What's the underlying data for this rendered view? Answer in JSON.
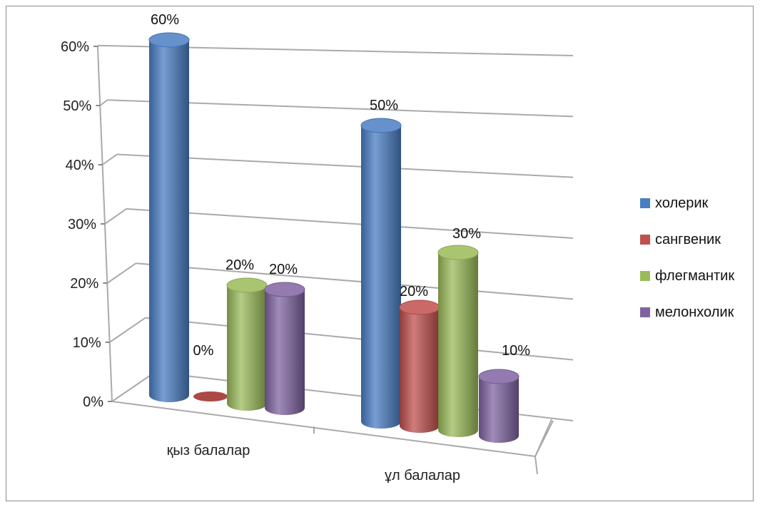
{
  "chart_data": {
    "type": "bar",
    "style": "3d-cylinder",
    "categories": [
      "қыз балалар",
      "ұл балалар"
    ],
    "series": [
      {
        "name": "холерик",
        "values": [
          60,
          50
        ],
        "color": "#4a7ec4"
      },
      {
        "name": "сангвеник",
        "values": [
          0,
          20
        ],
        "color": "#c0504d"
      },
      {
        "name": "флегмантик",
        "values": [
          20,
          30
        ],
        "color": "#9bbb59"
      },
      {
        "name": "мелонхолик",
        "values": [
          20,
          10
        ],
        "color": "#8064a2"
      }
    ],
    "data_labels": [
      [
        "60%",
        "50%"
      ],
      [
        "0%",
        "20%"
      ],
      [
        "20%",
        "30%"
      ],
      [
        "20%",
        "10%"
      ]
    ],
    "y_ticks": [
      "0%",
      "10%",
      "20%",
      "30%",
      "40%",
      "50%",
      "60%"
    ],
    "ylim": [
      0,
      60
    ],
    "grid": true,
    "legend_position": "right"
  }
}
